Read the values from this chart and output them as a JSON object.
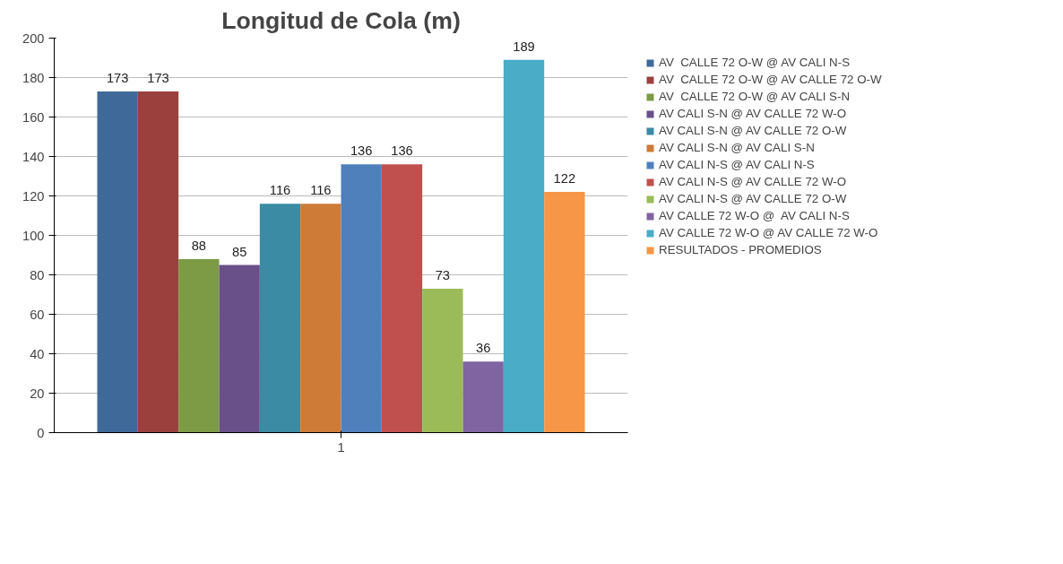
{
  "chart_data": {
    "type": "bar",
    "title": "Longitud de Cola (m)",
    "categories": [
      "1"
    ],
    "ylim": [
      0,
      200
    ],
    "yticks": [
      0,
      20,
      40,
      60,
      80,
      100,
      120,
      140,
      160,
      180,
      200
    ],
    "grid": "y",
    "legend": "right",
    "data_labels": true,
    "series": [
      {
        "name": "AV  CALLE 72 O-W @ AV CALI N-S",
        "color": "#3f6998",
        "values": [
          173
        ]
      },
      {
        "name": "AV  CALLE 72 O-W @ AV CALLE 72 O-W",
        "color": "#9c403e",
        "values": [
          173
        ]
      },
      {
        "name": "AV  CALLE 72 O-W @ AV CALI S-N",
        "color": "#7d9a45",
        "values": [
          88
        ]
      },
      {
        "name": "AV CALI S-N @ AV CALLE 72 W-O",
        "color": "#6a5089",
        "values": [
          85
        ]
      },
      {
        "name": "AV CALI S-N @ AV CALLE 72 O-W",
        "color": "#3a8ba3",
        "values": [
          116
        ]
      },
      {
        "name": "AV CALI S-N @ AV CALI S-N",
        "color": "#cd7b37",
        "values": [
          116
        ]
      },
      {
        "name": "AV CALI N-S @ AV CALI N-S",
        "color": "#4f80bc",
        "values": [
          136
        ]
      },
      {
        "name": "AV CALI N-S @ AV CALLE 72 W-O",
        "color": "#c0504e",
        "values": [
          136
        ]
      },
      {
        "name": "AV CALI N-S @ AV CALLE 72 O-W",
        "color": "#9bbb58",
        "values": [
          73
        ]
      },
      {
        "name": "AV CALLE 72 W-O @  AV CALI N-S",
        "color": "#8064a1",
        "values": [
          36
        ]
      },
      {
        "name": "AV CALLE 72 W-O @ AV CALLE 72 W-O",
        "color": "#4aacc6",
        "values": [
          189
        ]
      },
      {
        "name": "RESULTADOS - PROMEDIOS",
        "color": "#f79646",
        "values": [
          122
        ]
      }
    ]
  }
}
